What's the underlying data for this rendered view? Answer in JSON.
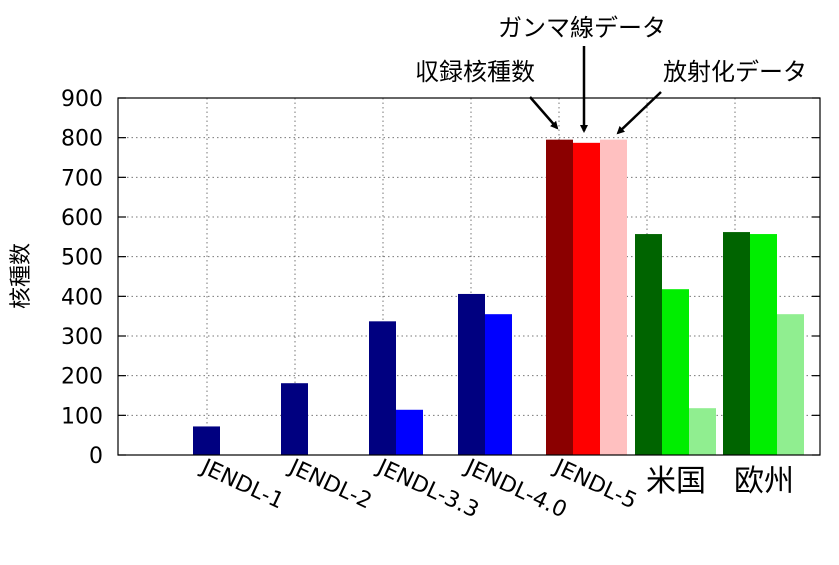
{
  "chart_data": {
    "type": "bar",
    "ylabel": "核種数",
    "ylim": [
      0,
      900
    ],
    "yticks": [
      0,
      100,
      200,
      300,
      400,
      500,
      600,
      700,
      800,
      900
    ],
    "grid": "dotted",
    "categories": [
      "JENDL-1",
      "JENDL-2",
      "JENDL-3.3",
      "JENDL-4.0",
      "JENDL-5",
      "米国",
      "欧州"
    ],
    "groups": [
      {
        "category": "JENDL-1",
        "bars": [
          {
            "value": 72,
            "color": "#000080"
          }
        ]
      },
      {
        "category": "JENDL-2",
        "bars": [
          {
            "value": 181,
            "color": "#000080"
          }
        ]
      },
      {
        "category": "JENDL-3.3",
        "bars": [
          {
            "value": 337,
            "color": "#000080"
          },
          {
            "value": 114,
            "color": "#0000ff"
          }
        ]
      },
      {
        "category": "JENDL-4.0",
        "bars": [
          {
            "value": 406,
            "color": "#000080"
          },
          {
            "value": 355,
            "color": "#0000ff"
          }
        ]
      },
      {
        "category": "JENDL-5",
        "bars": [
          {
            "value": 795,
            "color": "#8b0000"
          },
          {
            "value": 787,
            "color": "#ff0000"
          },
          {
            "value": 795,
            "color": "#ffc0c0"
          }
        ]
      },
      {
        "category": "米国",
        "bars": [
          {
            "value": 557,
            "color": "#006400"
          },
          {
            "value": 418,
            "color": "#00ee00"
          },
          {
            "value": 118,
            "color": "#90ee90"
          }
        ]
      },
      {
        "category": "欧州",
        "bars": [
          {
            "value": 562,
            "color": "#006400"
          },
          {
            "value": 557,
            "color": "#00ee00"
          },
          {
            "value": 355,
            "color": "#90ee90"
          }
        ]
      }
    ],
    "annotations": [
      {
        "text": "収録核種数",
        "points_to": "JENDL-5 bar 1"
      },
      {
        "text": "ガンマ線データ",
        "points_to": "JENDL-5 bar 2"
      },
      {
        "text": "放射化データ",
        "points_to": "JENDL-5 bar 3"
      }
    ]
  }
}
